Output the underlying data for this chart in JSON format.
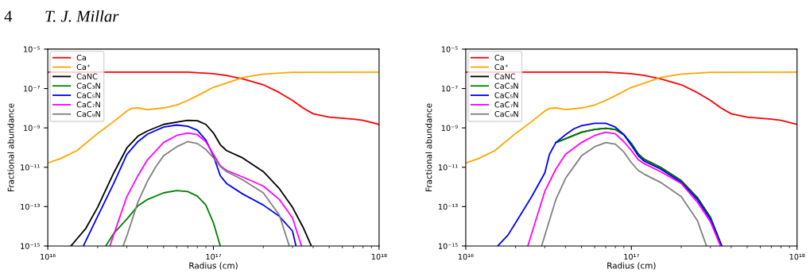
{
  "chart_data": [
    {
      "type": "line",
      "annotations": [
        "4",
        "T. J. Millar"
      ],
      "xlabel": "Radius (cm)",
      "ylabel": "Fractional abundance",
      "log": "xy",
      "legend": "top left",
      "grid": false,
      "xlim": [
        1e+16,
        1e+18
      ],
      "xticks": [
        {
          "value": 1e+16,
          "label": "10¹⁶"
        },
        {
          "value": 1e+17,
          "label": "10¹⁷"
        },
        {
          "value": 1e+18,
          "label": "10¹⁸"
        }
      ],
      "ylim": [
        1e-15,
        1e-05
      ],
      "yticks": [
        {
          "value": 1e-15,
          "label": "10⁻¹⁵"
        },
        {
          "value": 1e-13,
          "label": "10⁻¹³"
        },
        {
          "value": 1e-11,
          "label": "10⁻¹¹"
        },
        {
          "value": 1e-09,
          "label": "10⁻⁹"
        },
        {
          "value": 1e-07,
          "label": "10⁻⁷"
        },
        {
          "value": 1e-05,
          "label": "10⁻⁵"
        }
      ],
      "series": [
        {
          "name": "Ca",
          "color": "#ff0000",
          "x": [
            1e+16,
            3e+16,
            7e+16,
            1e+17,
            1.2e+17,
            1.5e+17,
            2e+17,
            2.5e+17,
            3e+17,
            3.5e+17,
            4e+17,
            5e+17,
            7e+17,
            8e+17,
            1e+18
          ],
          "values": [
            6.8e-07,
            6.8e-07,
            6.8e-07,
            5.7e-07,
            4.6e-07,
            3.1e-07,
            1.55e-07,
            6.2e-08,
            2.5e-08,
            9.8e-09,
            5.2e-09,
            3.5e-09,
            2.8e-09,
            2.4e-09,
            1.5e-09
          ]
        },
        {
          "name": "Ca⁺",
          "color": "#ffa500",
          "x": [
            1e+16,
            1.2e+16,
            1.5e+16,
            2e+16,
            2.5e+16,
            3e+16,
            3.2e+16,
            3.5e+16,
            4e+16,
            5e+16,
            6e+16,
            7e+16,
            8e+16,
            1e+17,
            1.2e+17,
            1.5e+17,
            2e+17,
            3e+17,
            1e+18
          ],
          "values": [
            1.65e-11,
            2.8e-11,
            7e-11,
            5.2e-10,
            2.1e-09,
            7.1e-09,
            9.7e-09,
            1.03e-08,
            8.5e-09,
            1.03e-08,
            1.44e-08,
            2.5e-08,
            4.3e-08,
            1.15e-07,
            1.9e-07,
            3.6e-07,
            5.4e-07,
            6.6e-07,
            6.8e-07
          ]
        },
        {
          "name": "CaNC",
          "color": "#000000",
          "x": [
            1.38e+16,
            1.5e+16,
            1.7e+16,
            2e+16,
            2.5e+16,
            3e+16,
            3.5e+16,
            4e+16,
            5e+16,
            6e+16,
            7e+16,
            8e+16,
            9e+16,
            1e+17,
            1.1e+17,
            1.2e+17,
            1.5e+17,
            2e+17,
            2.5e+17,
            3e+17,
            3.5e+17,
            3.9e+17
          ],
          "values": [
            1e-15,
            2.3e-15,
            8e-15,
            9.3e-14,
            5.1e-12,
            9.5e-11,
            3.8e-10,
            7e-10,
            1.5e-09,
            1.95e-09,
            2.4e-09,
            2.3e-09,
            1.5e-09,
            5.5e-10,
            1.4e-10,
            7e-11,
            3e-11,
            6e-12,
            8.2e-13,
            9.3e-14,
            8e-15,
            1e-15
          ]
        },
        {
          "name": "CaC₃N",
          "color": "#008000",
          "x": [
            2.24e+16,
            2.5e+16,
            3e+16,
            3.5e+16,
            4e+16,
            5e+16,
            6e+16,
            7e+16,
            8e+16,
            9e+16,
            1e+17,
            1.1e+17
          ],
          "values": [
            1e-15,
            4.3e-15,
            2.3e-14,
            1.1e-13,
            2.3e-13,
            5e-13,
            6.5e-13,
            5.8e-13,
            3.4e-13,
            1.2e-13,
            1.5e-14,
            1e-15
          ]
        },
        {
          "name": "CaC₅N",
          "color": "#0000ff",
          "x": [
            1.64e+16,
            2e+16,
            2.5e+16,
            3e+16,
            3.5e+16,
            4e+16,
            5e+16,
            6e+16,
            7e+16,
            8e+16,
            9e+16,
            1e+17,
            1.1e+17,
            1.2e+17,
            1.5e+17,
            2e+17,
            2.5e+17,
            3e+17,
            3.15e+17
          ],
          "values": [
            1e-15,
            3.2e-14,
            1.5e-12,
            4.5e-11,
            2e-10,
            4.8e-10,
            1.1e-09,
            1.4e-09,
            1.2e-09,
            7.6e-10,
            2.4e-10,
            3.8e-11,
            3.7e-12,
            1.5e-12,
            4.4e-13,
            1.2e-13,
            3.2e-14,
            5.8e-15,
            1e-15
          ]
        },
        {
          "name": "CaC₇N",
          "color": "#ff00ff",
          "x": [
            2.37e+16,
            3e+16,
            3.5e+16,
            4e+16,
            5e+16,
            6e+16,
            7e+16,
            8e+16,
            9e+16,
            1e+17,
            1.1e+17,
            1.2e+17,
            1.5e+17,
            2e+17,
            2.5e+17,
            3e+17,
            3.4e+17
          ],
          "values": [
            1e-15,
            3.2e-13,
            3.7e-12,
            2.4e-11,
            1.8e-10,
            4.1e-10,
            5.5e-10,
            4.5e-10,
            2e-10,
            4.5e-11,
            1.2e-11,
            6.9e-12,
            3.2e-12,
            1.1e-12,
            2.3e-13,
            2.7e-14,
            1e-15
          ]
        },
        {
          "name": "CaC₉N",
          "color": "#808080",
          "x": [
            2.85e+16,
            3e+16,
            3.5e+16,
            4e+16,
            4.5e+16,
            5e+16,
            6e+16,
            7e+16,
            8e+16,
            9e+16,
            1e+17,
            1.1e+17,
            1.2e+17,
            1.5e+17,
            2e+17,
            2.5e+17,
            2.87e+17
          ],
          "values": [
            1e-15,
            3.2e-15,
            1.7e-13,
            2e-12,
            1.1e-11,
            3.8e-11,
            1.1e-10,
            2e-10,
            1.6e-10,
            8e-11,
            3e-11,
            1.1e-11,
            6e-12,
            2.3e-12,
            5e-13,
            3.7e-14,
            1e-15
          ]
        }
      ]
    },
    {
      "type": "line",
      "xlabel": "Radius (cm)",
      "ylabel": "Fractional abundance",
      "log": "xy",
      "legend": "top left",
      "grid": false,
      "xlim": [
        1e+16,
        1e+18
      ],
      "xticks": [
        {
          "value": 1e+16,
          "label": "10¹⁶"
        },
        {
          "value": 1e+17,
          "label": "10¹⁷"
        },
        {
          "value": 1e+18,
          "label": "10¹⁸"
        }
      ],
      "ylim": [
        1e-15,
        1e-05
      ],
      "yticks": [
        {
          "value": 1e-15,
          "label": "10⁻¹⁵"
        },
        {
          "value": 1e-13,
          "label": "10⁻¹³"
        },
        {
          "value": 1e-11,
          "label": "10⁻¹¹"
        },
        {
          "value": 1e-09,
          "label": "10⁻⁹"
        },
        {
          "value": 1e-07,
          "label": "10⁻⁷"
        },
        {
          "value": 1e-05,
          "label": "10⁻⁵"
        }
      ],
      "series": [
        {
          "name": "Ca",
          "color": "#ff0000",
          "x": [
            1e+16,
            3e+16,
            7e+16,
            1e+17,
            1.2e+17,
            1.5e+17,
            2e+17,
            2.5e+17,
            3e+17,
            3.5e+17,
            4e+17,
            5e+17,
            7e+17,
            8e+17,
            1e+18
          ],
          "values": [
            6.8e-07,
            6.8e-07,
            6.8e-07,
            5.7e-07,
            4.6e-07,
            3.1e-07,
            1.55e-07,
            6.2e-08,
            2.5e-08,
            9.8e-09,
            5.2e-09,
            3.5e-09,
            2.8e-09,
            2.4e-09,
            1.5e-09
          ]
        },
        {
          "name": "Ca⁺",
          "color": "#ffa500",
          "x": [
            1e+16,
            1.2e+16,
            1.5e+16,
            2e+16,
            2.5e+16,
            3e+16,
            3.2e+16,
            3.5e+16,
            4e+16,
            5e+16,
            6e+16,
            7e+16,
            8e+16,
            1e+17,
            1.2e+17,
            1.5e+17,
            2e+17,
            3e+17,
            1e+18
          ],
          "values": [
            1.65e-11,
            2.8e-11,
            7e-11,
            5.2e-10,
            2.1e-09,
            7.1e-09,
            9.7e-09,
            1.03e-08,
            8.5e-09,
            1.03e-08,
            1.44e-08,
            2.5e-08,
            4.3e-08,
            1.15e-07,
            1.9e-07,
            3.6e-07,
            5.4e-07,
            6.6e-07,
            6.8e-07
          ]
        },
        {
          "name": "CaNC",
          "color": "#000000",
          "x": [
            3.5e+16,
            4e+16,
            5e+16,
            6e+16,
            7e+16,
            8e+16,
            9e+16,
            1e+17,
            1.1e+17,
            1.2e+17,
            1.5e+17,
            2e+17,
            2.5e+17,
            3e+17,
            3.5e+17
          ],
          "values": [
            1.8e-10,
            2.8e-10,
            6e-10,
            8.3e-10,
            9.5e-10,
            8.3e-10,
            4.6e-10,
            1.6e-10,
            4.8e-11,
            2.5e-11,
            1e-11,
            2.1e-12,
            2.9e-13,
            2.9e-14,
            1.1e-15
          ]
        },
        {
          "name": "CaC₃N",
          "color": "#008000",
          "x": [
            3.5e+16,
            4e+16,
            5e+16,
            6e+16,
            7e+16,
            8e+16,
            9e+16,
            1e+17,
            1.1e+17,
            1.2e+17,
            1.5e+17,
            2e+17,
            2.5e+17,
            3e+17,
            3.5e+17
          ],
          "values": [
            1.8e-10,
            2.8e-10,
            6e-10,
            8.3e-10,
            9.5e-10,
            8.3e-10,
            4.5e-10,
            1.5e-10,
            4.5e-11,
            2.4e-11,
            9.5e-12,
            2e-12,
            2.7e-13,
            2.7e-14,
            1e-15
          ]
        },
        {
          "name": "CaC₅N",
          "color": "#0000ff",
          "x": [
            1.56e+16,
            1.8e+16,
            2e+16,
            2.5e+16,
            3e+16,
            3.2e+16,
            3.5e+16,
            4e+16,
            4.5e+16,
            5e+16,
            6e+16,
            7e+16,
            8e+16,
            9e+16,
            1e+17,
            1.1e+17,
            1.2e+17,
            1.5e+17,
            2e+17,
            2.5e+17,
            3e+17,
            3.5e+17
          ],
          "values": [
            1e-15,
            3.6e-15,
            1.5e-14,
            3.2e-13,
            5.1e-12,
            4.5e-11,
            1.8e-10,
            4.5e-10,
            9e-10,
            1.3e-09,
            1.7e-09,
            1.7e-09,
            1.1e-09,
            4.5e-10,
            1.3e-10,
            3.8e-11,
            2e-11,
            8.1e-12,
            1.7e-12,
            2.3e-13,
            2.3e-14,
            1e-15
          ]
        },
        {
          "name": "CaC₇N",
          "color": "#ff00ff",
          "x": [
            2.37e+16,
            3e+16,
            3.5e+16,
            4e+16,
            5e+16,
            6e+16,
            7e+16,
            8e+16,
            9e+16,
            1e+17,
            1.1e+17,
            1.2e+17,
            1.5e+17,
            2e+17,
            2.5e+17,
            3e+17,
            3.45e+17
          ],
          "values": [
            1e-15,
            5.9e-13,
            8.1e-12,
            4.5e-11,
            1.8e-10,
            4.1e-10,
            6e-10,
            5e-10,
            2e-10,
            7e-11,
            2.4e-11,
            1.5e-11,
            6e-12,
            1.5e-12,
            1.7e-13,
            1.7e-14,
            1e-15
          ]
        },
        {
          "name": "CaC₉N",
          "color": "#808080",
          "x": [
            2.87e+16,
            3.5e+16,
            4e+16,
            5e+16,
            6e+16,
            7e+16,
            8e+16,
            9e+16,
            1e+17,
            1.1e+17,
            1.2e+17,
            1.5e+17,
            2e+17,
            2.5e+17,
            2.84e+17
          ],
          "values": [
            1e-15,
            2.3e-13,
            2.7e-12,
            3.8e-11,
            1.1e-10,
            1.8e-10,
            1.5e-10,
            6e-11,
            1.7e-11,
            6.9e-12,
            4.4e-12,
            1.7e-12,
            3.2e-13,
            2e-14,
            1e-15
          ]
        }
      ]
    }
  ]
}
